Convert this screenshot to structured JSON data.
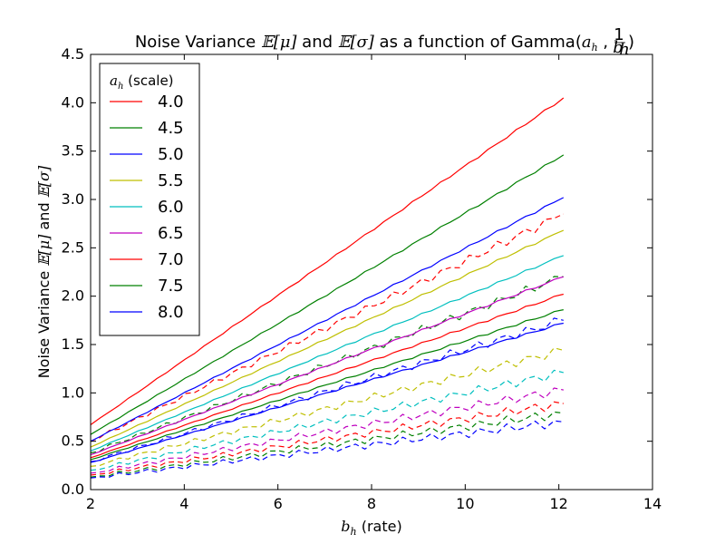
{
  "chart_data": {
    "type": "line",
    "title": {
      "prefix": "Noise Variance ",
      "mu": "𝔼[μ]",
      "and": " and ",
      "sigma": "𝔼[σ]",
      "suffix": " as a function of Gamma(",
      "ah": "a",
      "ah_sub": "h",
      "comma": " ,",
      "frac_num": "1",
      "frac_den": "b",
      "frac_den_sub": "h",
      "close": ")"
    },
    "xlabel": {
      "var": "b",
      "sub": "h",
      "text": " (rate)"
    },
    "ylabel": {
      "prefix": "Noise Variance ",
      "mu": "𝔼[μ]",
      "and": " and ",
      "sigma": "𝔼[σ]"
    },
    "xlim": [
      2,
      14
    ],
    "ylim": [
      0,
      4.5
    ],
    "xticks": [
      "2",
      "4",
      "6",
      "8",
      "10",
      "12",
      "14"
    ],
    "yticks": [
      "0.0",
      "0.5",
      "1.0",
      "1.5",
      "2.0",
      "2.5",
      "3.0",
      "3.5",
      "4.0",
      "4.5"
    ],
    "grid": false,
    "legend": {
      "position": "top-left",
      "title_var": "a",
      "title_sub": "h",
      "title_text": " (scale)"
    },
    "x_range": [
      2.0,
      12.1
    ],
    "series": [
      {
        "name": "4.0",
        "color": "#ff0000",
        "solid": [
          0.67,
          4.05
        ],
        "dashed": [
          0.5,
          2.85
        ]
      },
      {
        "name": "4.5",
        "color": "#008000",
        "solid": [
          0.57,
          3.46
        ],
        "dashed": [
          0.38,
          2.2
        ]
      },
      {
        "name": "5.0",
        "color": "#0000ff",
        "solid": [
          0.5,
          3.02
        ],
        "dashed": [
          0.29,
          1.75
        ]
      },
      {
        "name": "5.5",
        "color": "#bfbf00",
        "solid": [
          0.44,
          2.68
        ],
        "dashed": [
          0.24,
          1.44
        ]
      },
      {
        "name": "6.0",
        "color": "#00bfbf",
        "solid": [
          0.4,
          2.42
        ],
        "dashed": [
          0.2,
          1.21
        ]
      },
      {
        "name": "6.5",
        "color": "#bf00bf",
        "solid": [
          0.36,
          2.2
        ],
        "dashed": [
          0.17,
          1.03
        ]
      },
      {
        "name": "7.0",
        "color": "#ff0000",
        "solid": [
          0.33,
          2.02
        ],
        "dashed": [
          0.15,
          0.89
        ]
      },
      {
        "name": "7.5",
        "color": "#008000",
        "solid": [
          0.31,
          1.86
        ],
        "dashed": [
          0.13,
          0.79
        ]
      },
      {
        "name": "8.0",
        "color": "#0000ff",
        "solid": [
          0.28,
          1.72
        ],
        "dashed": [
          0.12,
          0.7
        ]
      }
    ]
  }
}
